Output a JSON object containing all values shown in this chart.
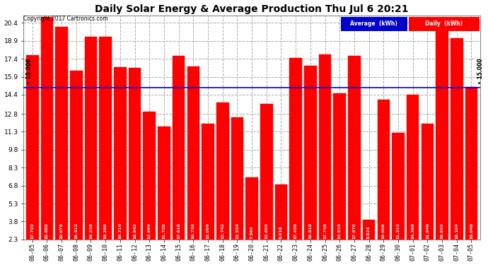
{
  "title": "Daily Solar Energy & Average Production Thu Jul 6 20:21",
  "copyright": "Copyright 2017 Cartronics.com",
  "categories": [
    "06-05",
    "06-06",
    "06-07",
    "06-08",
    "06-09",
    "06-10",
    "06-11",
    "06-12",
    "06-13",
    "06-14",
    "06-15",
    "06-16",
    "06-17",
    "06-18",
    "06-19",
    "06-20",
    "06-21",
    "06-22",
    "06-23",
    "06-24",
    "06-25",
    "06-26",
    "06-27",
    "06-28",
    "06-29",
    "06-30",
    "07-01",
    "07-02",
    "07-03",
    "07-04",
    "07-05"
  ],
  "values": [
    17.72,
    20.888,
    20.076,
    16.412,
    19.228,
    19.26,
    16.714,
    16.642,
    12.964,
    11.72,
    17.618,
    16.73,
    12.004,
    13.742,
    12.534,
    7.504,
    13.604,
    6.918,
    17.436,
    16.818,
    17.736,
    14.514,
    17.67,
    3.924,
    14.008,
    11.212,
    14.368,
    11.946,
    19.942,
    19.104,
    15.048
  ],
  "bar_color": "#ff0000",
  "average_value": 15.0,
  "average_color": "#0000cc",
  "average_label": "Average  (kWh)",
  "daily_label": "Daily  (kWh)",
  "legend_avg_bg": "#0000cc",
  "legend_daily_bg": "#ff0000",
  "yticks": [
    2.3,
    3.8,
    5.3,
    6.8,
    8.3,
    9.8,
    11.3,
    12.8,
    14.4,
    15.9,
    17.4,
    18.9,
    20.4
  ],
  "ylim_min": 2.3,
  "ylim_max": 21.0,
  "avg_label_text": "15.000",
  "background_color": "#ffffff",
  "grid_color": "#aaaaaa",
  "bar_edge_color": "#ff0000"
}
